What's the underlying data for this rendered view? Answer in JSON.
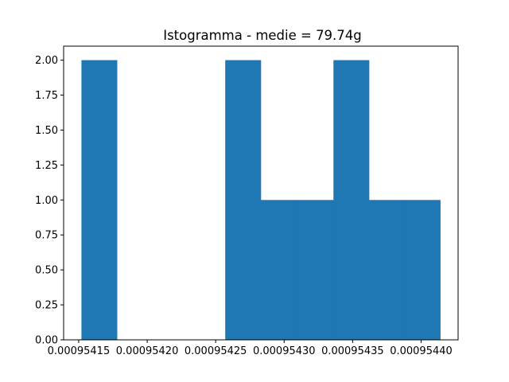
{
  "chart_data": {
    "type": "bar",
    "title": "Istogramma - medie = 79.74g",
    "xlabel": "",
    "ylabel": "",
    "bar_color": "#1f77b4",
    "bin_edges": [
      0.000954152,
      0.000954178,
      0.000954205,
      0.000954231,
      0.000954257,
      0.000954283,
      0.000954309,
      0.000954336,
      0.000954362,
      0.000954388,
      0.000954414
    ],
    "counts": [
      2,
      0,
      0,
      0,
      2,
      1,
      1,
      2,
      1,
      1
    ],
    "xlim": [
      0.000954139,
      0.000954427
    ],
    "ylim": [
      0,
      2.1
    ],
    "x_ticks": [
      0.00095415,
      0.0009542,
      0.00095425,
      0.0009543,
      0.00095435,
      0.0009544
    ],
    "x_tick_labels": [
      "0.00095415",
      "0.00095420",
      "0.00095425",
      "0.00095430",
      "0.00095435",
      "0.00095440"
    ],
    "y_ticks": [
      0,
      0.25,
      0.5,
      0.75,
      1.0,
      1.25,
      1.5,
      1.75,
      2.0
    ],
    "y_tick_labels": [
      "0.00",
      "0.25",
      "0.50",
      "0.75",
      "1.00",
      "1.25",
      "1.50",
      "1.75",
      "2.00"
    ],
    "grid": false,
    "legend": "none"
  }
}
